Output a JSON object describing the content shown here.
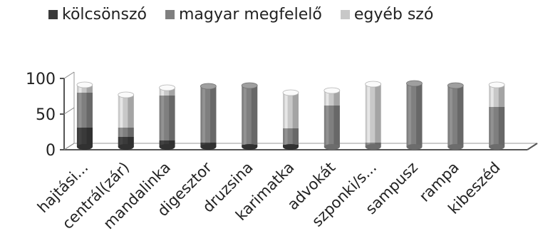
{
  "chart_data": {
    "type": "bar",
    "stacked": true,
    "three_d": true,
    "categories": [
      "hajtási...",
      "centrál(zár)",
      "mandalinka",
      "digesztor",
      "druzsina",
      "karimatka",
      "advokát",
      "szponki/s...",
      "sampusz",
      "rampa",
      "kibeszéd"
    ],
    "series": [
      {
        "name": "kölcsönszó",
        "color": "#3a3a3a",
        "values": [
          27,
          14,
          9,
          6,
          3,
          3,
          0,
          0,
          0,
          0,
          0
        ]
      },
      {
        "name": "magyar megfelelő",
        "color": "#7f7f7f",
        "values": [
          49,
          13,
          63,
          79,
          83,
          23,
          58,
          6,
          89,
          86,
          56
        ]
      },
      {
        "name": "egyéb szó",
        "color": "#c8c8c8",
        "values": [
          11,
          46,
          11,
          0,
          0,
          50,
          21,
          82,
          0,
          0,
          31
        ]
      }
    ],
    "y_ticks": [
      "0",
      "50",
      "100"
    ],
    "ylim": [
      0,
      100
    ],
    "legend_position": "top",
    "grid": false
  }
}
